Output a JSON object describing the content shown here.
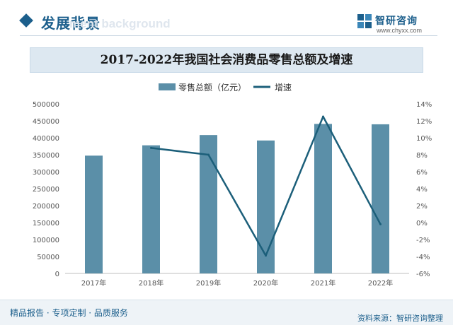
{
  "header": {
    "section_title": "发展背景",
    "section_subtitle": "ment background",
    "brand_name": "智研咨询",
    "brand_url": "www.chyxx.com"
  },
  "chart_data": {
    "type": "bar",
    "title": "2017-2022年我国社会消费品零售总额及增速",
    "categories": [
      "2017年",
      "2018年",
      "2019年",
      "2020年",
      "2021年",
      "2022年"
    ],
    "series": [
      {
        "name": "零售总额（亿元）",
        "type": "bar",
        "axis": "left",
        "color": "#5b8fa8",
        "values": [
          347327,
          377783,
          408017,
          391981,
          440823,
          439733
        ]
      },
      {
        "name": "增速",
        "type": "line",
        "axis": "right",
        "color": "#1c5f7a",
        "values": [
          null,
          8.8,
          8.0,
          -3.9,
          12.5,
          -0.2
        ]
      }
    ],
    "y_left": {
      "min": 0,
      "max": 500000,
      "step": 50000,
      "ticks": [
        "0",
        "50000",
        "100000",
        "150000",
        "200000",
        "250000",
        "300000",
        "350000",
        "400000",
        "450000",
        "500000"
      ]
    },
    "y_right": {
      "min": -6,
      "max": 14,
      "step": 2,
      "ticks": [
        "-6%",
        "-4%",
        "-2%",
        "0%",
        "2%",
        "4%",
        "6%",
        "8%",
        "10%",
        "12%",
        "14%"
      ]
    },
    "legend_position": "top-center",
    "grid": false
  },
  "footer": {
    "left_text": "精品报告 · 专项定制 · 品质服务",
    "source_text": "资料来源：智研咨询整理"
  }
}
